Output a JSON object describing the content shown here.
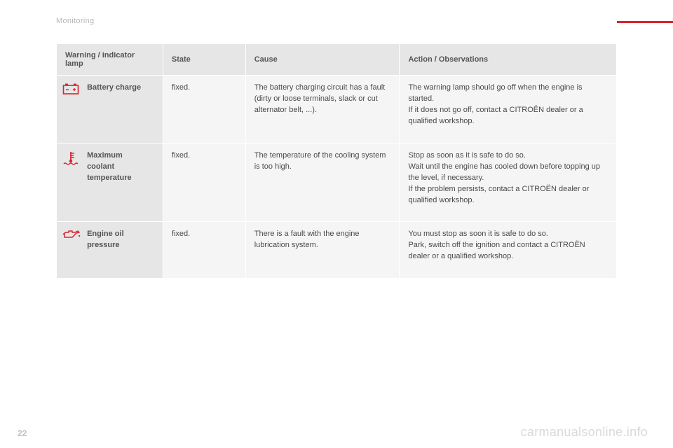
{
  "section": "Monitoring",
  "page_number": "22",
  "watermark": "carmanualsonline.info",
  "accent_color": "#d8232a",
  "table": {
    "columns": [
      "Warning / indicator lamp",
      "State",
      "Cause",
      "Action / Observations"
    ],
    "rows": [
      {
        "icon": "battery",
        "lamp": "Battery charge",
        "state": "fixed.",
        "cause": "The battery charging circuit has a fault (dirty or loose terminals, slack or cut alternator belt, ...).",
        "action": "The warning lamp should go off when the engine is started.\nIf it does not go off, contact a CITROËN dealer or a qualified workshop."
      },
      {
        "icon": "coolant",
        "lamp": "Maximum coolant temperature",
        "state": "fixed.",
        "cause": "The temperature of the cooling system is too high.",
        "action": "Stop as soon as it is safe to do so.\nWait until the engine has cooled down before topping up the level, if necessary.\nIf the problem persists, contact a CITROËN dealer or qualified workshop."
      },
      {
        "icon": "oil",
        "lamp": "Engine oil pressure",
        "state": "fixed.",
        "cause": "There is a fault with the engine lubrication system.",
        "action": "You must stop as soon it is safe to do so.\nPark, switch off the ignition and contact a CITROËN dealer or a qualified workshop."
      }
    ]
  }
}
